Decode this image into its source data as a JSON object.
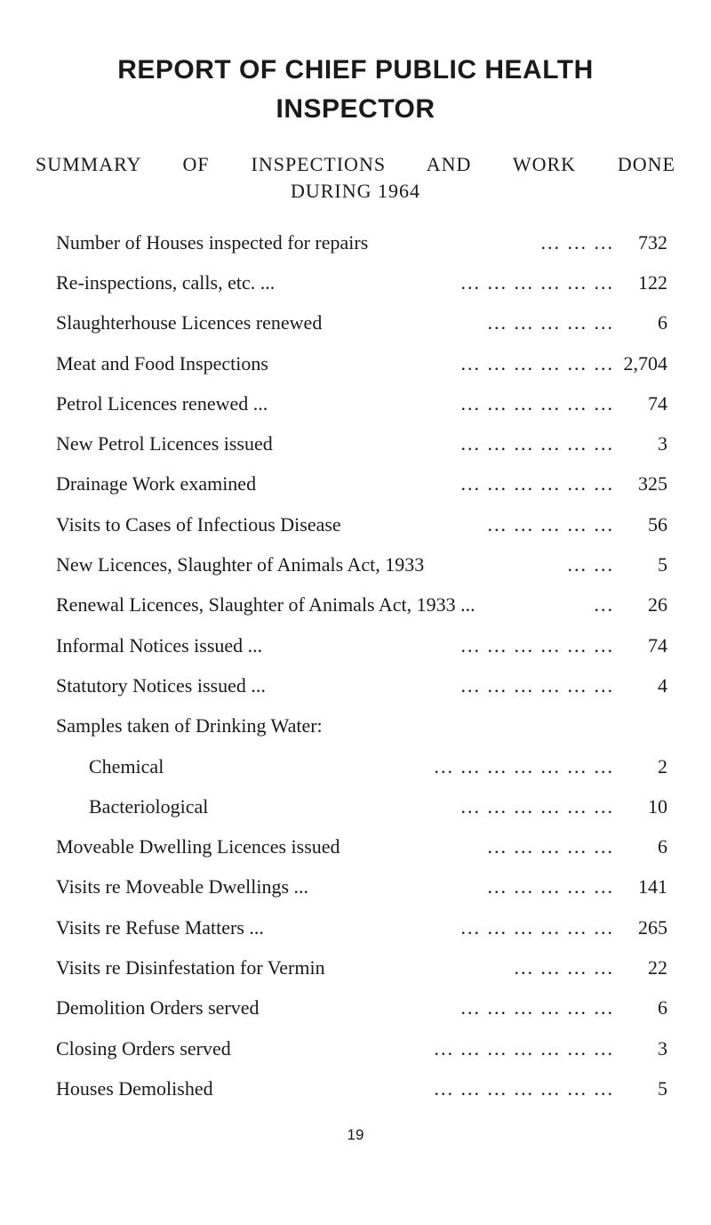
{
  "title": {
    "line1": "REPORT OF CHIEF PUBLIC HEALTH",
    "line2": "INSPECTOR"
  },
  "subtitle": {
    "line1": "SUMMARY OF INSPECTIONS AND WORK DONE",
    "line2": "DURING 1964"
  },
  "rows": [
    {
      "label": "Number of Houses inspected for repairs",
      "dots": "... ... ...",
      "value": "732"
    },
    {
      "label": "Re-inspections, calls, etc. ...",
      "dots": "... ... ... ... ... ...",
      "value": "122"
    },
    {
      "label": "Slaughterhouse Licences renewed",
      "dots": "... ... ... ... ...",
      "value": "6"
    },
    {
      "label": "Meat and Food Inspections",
      "dots": "... ... ... ... ... ...",
      "value": "2,704"
    },
    {
      "label": "Petrol Licences renewed ...",
      "dots": "... ... ... ... ... ...",
      "value": "74"
    },
    {
      "label": "New Petrol Licences issued",
      "dots": "... ... ... ... ... ...",
      "value": "3"
    },
    {
      "label": "Drainage Work examined",
      "dots": "... ... ... ... ... ...",
      "value": "325"
    },
    {
      "label": "Visits to Cases of Infectious Disease",
      "dots": "... ... ... ... ...",
      "value": "56"
    },
    {
      "label": "New Licences, Slaughter of Animals Act, 1933",
      "dots": "... ...",
      "value": "5"
    },
    {
      "label": "Renewal Licences, Slaughter of Animals Act, 1933 ...",
      "dots": "...",
      "value": "26"
    },
    {
      "label": "Informal Notices issued ...",
      "dots": "... ... ... ... ... ...",
      "value": "74"
    },
    {
      "label": "Statutory Notices issued ...",
      "dots": "... ... ... ... ... ...",
      "value": "4"
    },
    {
      "label": "Samples taken of Drinking Water:",
      "dots": "",
      "value": ""
    },
    {
      "label": "Chemical",
      "dots": "... ... ... ... ... ... ...",
      "value": "2",
      "indent": true
    },
    {
      "label": "Bacteriological",
      "dots": "... ... ... ... ... ...",
      "value": "10",
      "indent": true
    },
    {
      "label": "Moveable Dwelling Licences issued",
      "dots": "... ... ... ... ...",
      "value": "6"
    },
    {
      "label": "Visits re Moveable Dwellings ...",
      "dots": "... ... ... ... ...",
      "value": "141"
    },
    {
      "label": "Visits re Refuse Matters ...",
      "dots": "... ... ... ... ... ...",
      "value": "265"
    },
    {
      "label": "Visits re Disinfestation for Vermin",
      "dots": "... ... ... ...",
      "value": "22"
    },
    {
      "label": "Demolition Orders served",
      "dots": "... ... ... ... ... ...",
      "value": "6"
    },
    {
      "label": "Closing Orders served",
      "dots": "... ... ... ... ... ... ...",
      "value": "3"
    },
    {
      "label": "Houses Demolished",
      "dots": "... ... ... ... ... ... ...",
      "value": "5"
    }
  ],
  "page_number": "19"
}
